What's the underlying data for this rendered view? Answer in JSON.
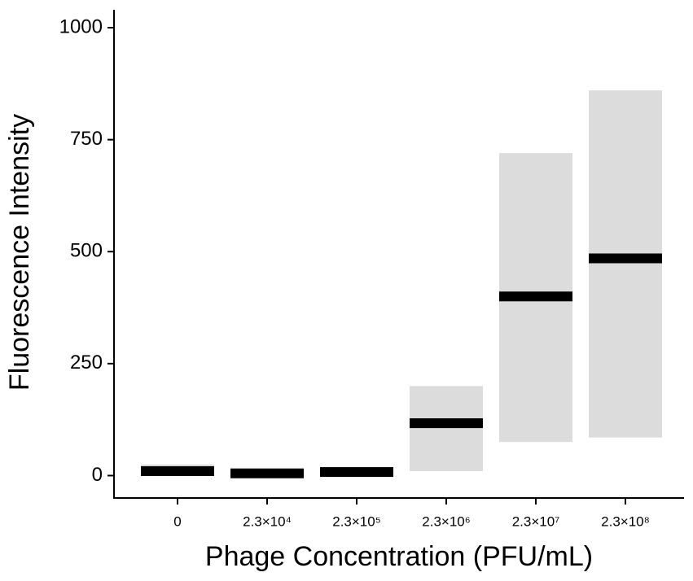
{
  "chart_data": {
    "type": "strip",
    "x_label": "Phage Concentration (PFU/mL)",
    "y_label": "Fluorescence Intensity",
    "categories": [
      "0",
      "2.3×10⁴",
      "2.3×10⁵",
      "2.3×10⁶",
      "2.3×10⁷",
      "2.3×10⁸"
    ],
    "values": [
      10,
      5,
      8,
      117,
      400,
      485
    ],
    "low": [
      0,
      0,
      0,
      10,
      75,
      85
    ],
    "high": [
      25,
      15,
      15,
      200,
      720,
      860
    ],
    "color": "#000000",
    "spread_color": "#c4c4c4",
    "ylim": [
      -50,
      1040
    ],
    "yticks": [
      0,
      250,
      500,
      750,
      1000
    ],
    "grid": false
  }
}
